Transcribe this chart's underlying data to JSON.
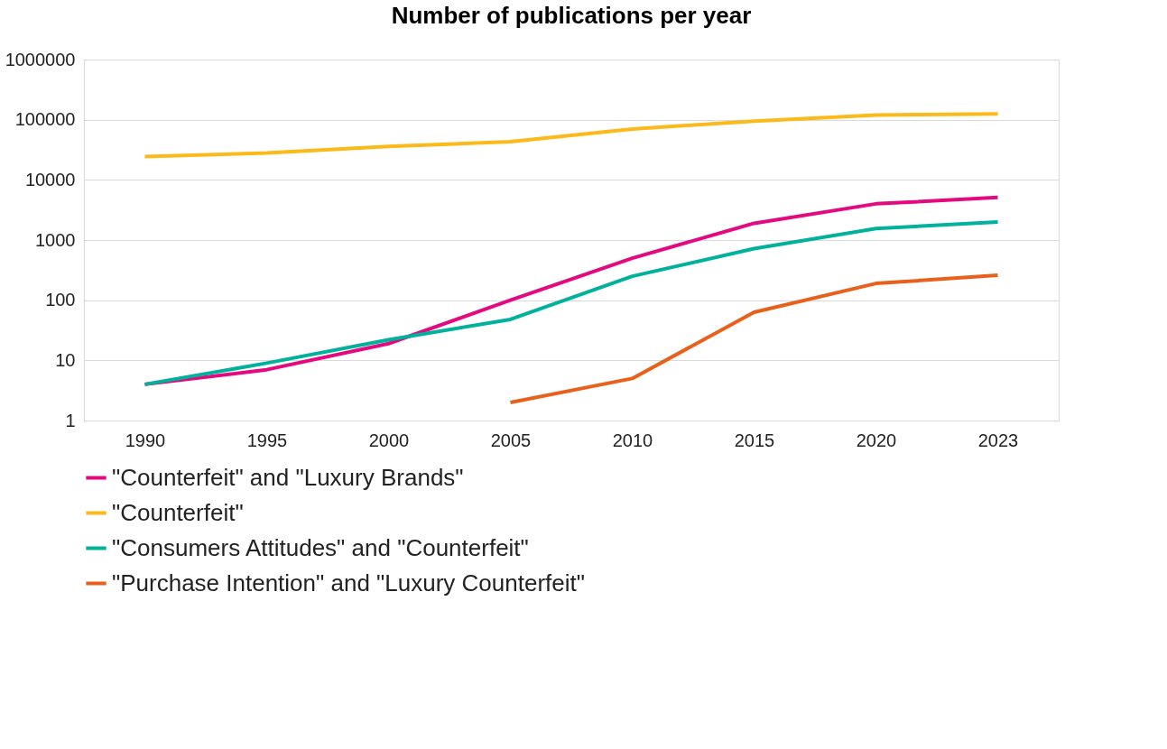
{
  "chart_data": {
    "type": "line",
    "title": "Number of publications per year",
    "categories": [
      "1990",
      "1995",
      "2000",
      "2005",
      "2010",
      "2015",
      "2020",
      "2023"
    ],
    "series": [
      {
        "name": "\"Counterfeit\" and \"Luxury Brands\"",
        "color": "#e5097f",
        "values": [
          4,
          7,
          19,
          100,
          500,
          1900,
          4000,
          5100
        ]
      },
      {
        "name": "\"Counterfeit\"",
        "color": "#fbb91a",
        "values": [
          24500,
          28000,
          36000,
          43000,
          70000,
          95000,
          120000,
          125000
        ]
      },
      {
        "name": "\"Consumers Attitudes\" and \"Counterfeit\"",
        "color": "#00b19b",
        "values": [
          4,
          9,
          22,
          48,
          250,
          720,
          1550,
          2000
        ]
      },
      {
        "name": "\"Purchase Intention\" and \"Luxury Counterfeit\"",
        "color": "#e9601c",
        "values": [
          null,
          null,
          null,
          2,
          5,
          63,
          190,
          260
        ]
      }
    ],
    "log": true,
    "ylim": [
      1,
      1000000
    ],
    "yticks": [
      1,
      10,
      100,
      1000,
      10000,
      100000,
      1000000
    ],
    "grid": "y",
    "legend": "bottom",
    "line_style": "solid",
    "marker": "none"
  }
}
